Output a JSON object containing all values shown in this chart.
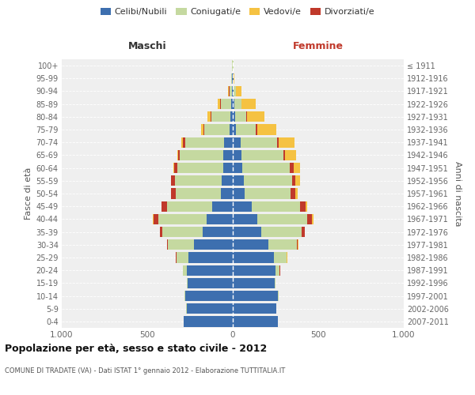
{
  "age_groups": [
    "0-4",
    "5-9",
    "10-14",
    "15-19",
    "20-24",
    "25-29",
    "30-34",
    "35-39",
    "40-44",
    "45-49",
    "50-54",
    "55-59",
    "60-64",
    "65-69",
    "70-74",
    "75-79",
    "80-84",
    "85-89",
    "90-94",
    "95-99",
    "100+"
  ],
  "birth_years": [
    "2007-2011",
    "2002-2006",
    "1997-2001",
    "1992-1996",
    "1987-1991",
    "1982-1986",
    "1977-1981",
    "1972-1976",
    "1967-1971",
    "1962-1966",
    "1957-1961",
    "1952-1956",
    "1947-1951",
    "1942-1946",
    "1937-1941",
    "1932-1936",
    "1927-1931",
    "1922-1926",
    "1917-1921",
    "1912-1916",
    "≤ 1911"
  ],
  "male": {
    "celibi": [
      285,
      270,
      280,
      265,
      270,
      260,
      225,
      175,
      155,
      120,
      70,
      65,
      55,
      55,
      50,
      20,
      15,
      10,
      5,
      3,
      2
    ],
    "coniugati": [
      0,
      1,
      2,
      5,
      20,
      70,
      155,
      235,
      280,
      265,
      265,
      275,
      270,
      255,
      230,
      145,
      110,
      60,
      15,
      4,
      1
    ],
    "vedovi": [
      0,
      0,
      0,
      0,
      0,
      0,
      0,
      1,
      1,
      1,
      2,
      3,
      4,
      5,
      8,
      10,
      20,
      15,
      5,
      1,
      0
    ],
    "divorziati": [
      0,
      0,
      0,
      0,
      0,
      2,
      5,
      15,
      30,
      30,
      25,
      20,
      18,
      10,
      12,
      8,
      4,
      2,
      1,
      0,
      0
    ]
  },
  "female": {
    "nubili": [
      265,
      255,
      265,
      245,
      250,
      240,
      210,
      165,
      145,
      110,
      70,
      65,
      55,
      50,
      45,
      20,
      15,
      10,
      5,
      3,
      2
    ],
    "coniugate": [
      0,
      1,
      2,
      5,
      25,
      75,
      165,
      240,
      290,
      285,
      270,
      280,
      280,
      245,
      215,
      115,
      65,
      40,
      12,
      3,
      1
    ],
    "vedove": [
      0,
      0,
      0,
      0,
      0,
      1,
      2,
      3,
      5,
      8,
      15,
      25,
      40,
      65,
      90,
      110,
      100,
      80,
      35,
      5,
      0
    ],
    "divorziate": [
      0,
      0,
      0,
      0,
      1,
      2,
      5,
      15,
      30,
      30,
      25,
      22,
      20,
      12,
      10,
      8,
      5,
      2,
      1,
      0,
      0
    ]
  },
  "colors": {
    "celibi_nubili": "#3d6faf",
    "coniugati": "#c5d9a0",
    "vedovi": "#f5c242",
    "divorziati": "#c0392b"
  },
  "title": "Popolazione per età, sesso e stato civile - 2012",
  "subtitle": "COMUNE DI TRADATE (VA) - Dati ISTAT 1° gennaio 2012 - Elaborazione TUTTITALIA.IT",
  "xlabel_left": "Maschi",
  "xlabel_right": "Femmine",
  "ylabel": "Fasce di età",
  "ylabel_right": "Anni di nascita",
  "xlim": 1000,
  "legend_labels": [
    "Celibi/Nubili",
    "Coniugati/e",
    "Vedovi/e",
    "Divorziati/e"
  ],
  "background": "#ffffff",
  "plot_bg": "#efefef"
}
